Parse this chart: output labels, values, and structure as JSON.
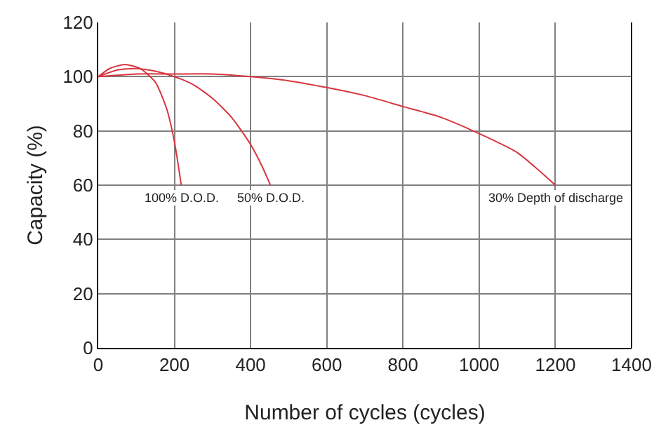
{
  "chart_data": {
    "type": "line",
    "xlabel": "Number of cycles (cycles)",
    "ylabel": "Capacity (%)",
    "series": [
      {
        "color": "#d9363e",
        "x": [
          0,
          30,
          70,
          110,
          150,
          180,
          200,
          218
        ],
        "values": [
          100,
          103,
          104.5,
          103,
          98,
          88,
          76,
          60
        ]
      },
      {
        "color": "#d9363e",
        "x": [
          0,
          50,
          100,
          150,
          200,
          250,
          300,
          350,
          400,
          430,
          452
        ],
        "values": [
          100,
          102.5,
          103,
          102,
          100,
          97,
          92,
          85,
          75,
          67,
          60
        ]
      },
      {
        "color": "#d9363e",
        "x": [
          0,
          100,
          200,
          300,
          400,
          500,
          600,
          700,
          800,
          900,
          1000,
          1100,
          1200
        ],
        "values": [
          100,
          101,
          101,
          101,
          100,
          98.5,
          96,
          93,
          89,
          85,
          79,
          72,
          60
        ]
      }
    ],
    "annotations": [
      {
        "text": "100% D.O.D.",
        "x": 218,
        "y": 60
      },
      {
        "text": "50% D.O.D.",
        "x": 452,
        "y": 60
      },
      {
        "text": "30% Depth of discharge",
        "x": 1200,
        "y": 60
      }
    ],
    "xlim": [
      0,
      1400
    ],
    "xticks": [
      0,
      200,
      400,
      600,
      800,
      1000,
      1200,
      1400
    ],
    "ylim": [
      0,
      120
    ],
    "yticks": [
      0,
      20,
      40,
      60,
      80,
      100,
      120
    ],
    "grid": true,
    "marker": "none",
    "line_style": "solid"
  }
}
